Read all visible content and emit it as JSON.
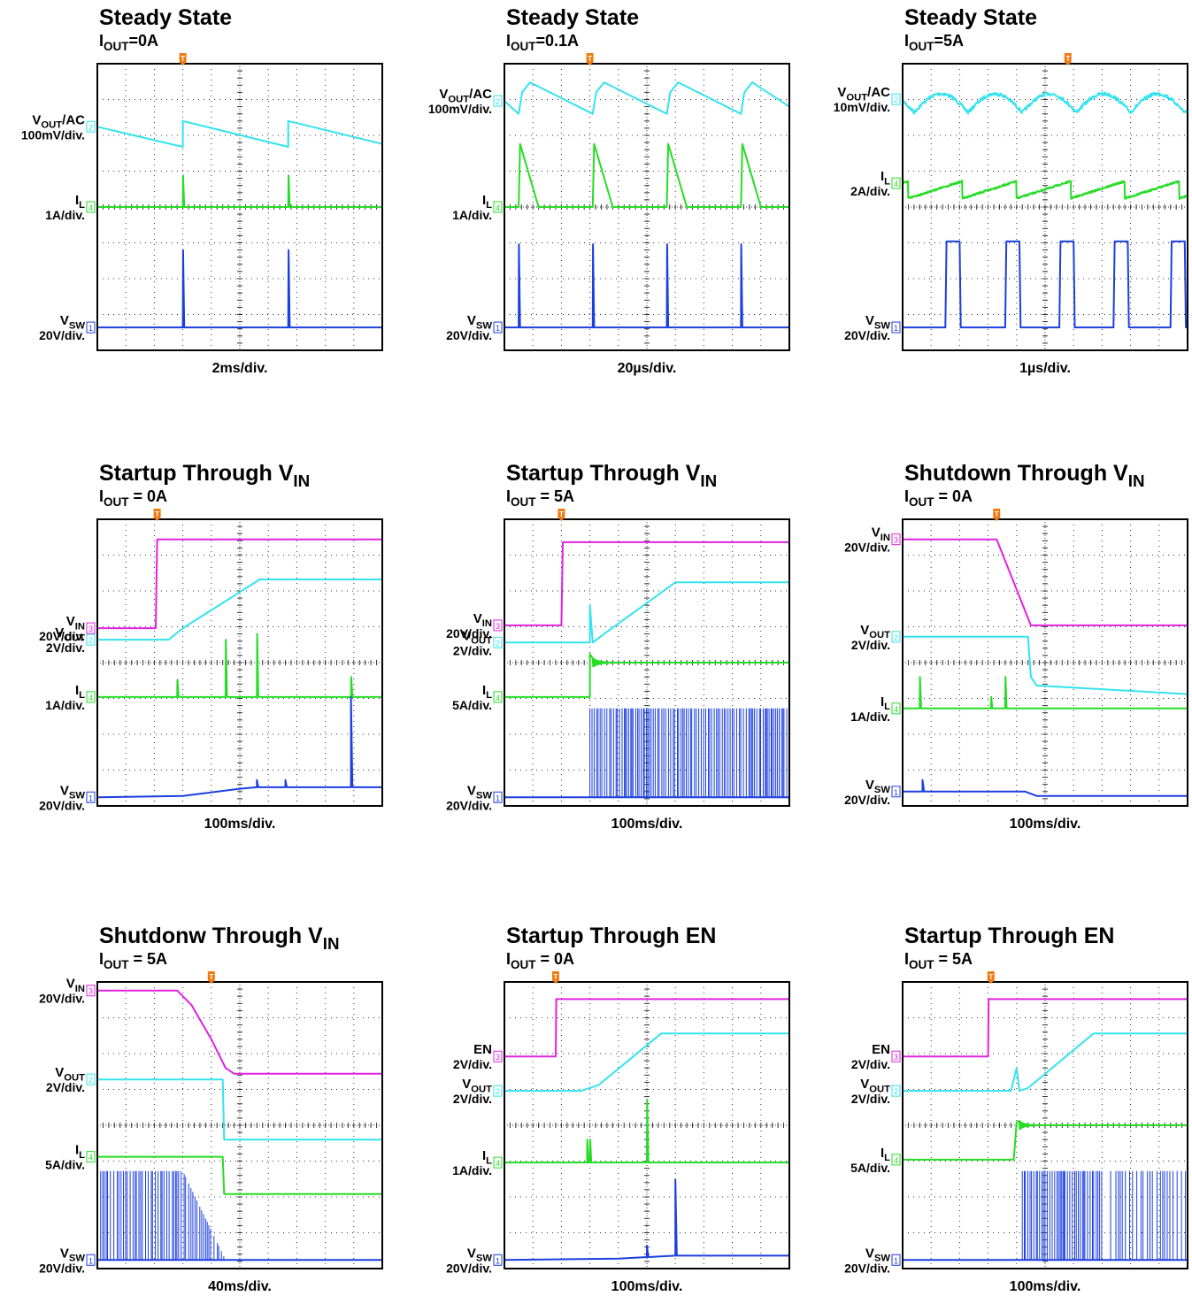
{
  "panels": [
    {
      "title": {
        "text": "Steady State"
      },
      "subtitle": {
        "symbol": "I",
        "subscript": "OUT",
        "suffix": "=0A"
      },
      "trigger": "T",
      "channels": [
        {
          "symbol": "V",
          "subscript": "OUT",
          "suffix": "/AC",
          "scale": "100mV/div.",
          "number": "2"
        },
        {
          "symbol": "I",
          "subscript": "L",
          "scale": "1A/div.",
          "number": "4"
        },
        {
          "symbol": "V",
          "subscript": "SW",
          "scale": "20V/div.",
          "number": "1"
        }
      ],
      "timebase": "2ms/div."
    },
    {
      "title": {
        "text": "Steady State"
      },
      "subtitle": {
        "symbol": "I",
        "subscript": "OUT",
        "suffix": "=0.1A"
      },
      "trigger": "T",
      "channels": [
        {
          "symbol": "V",
          "subscript": "OUT",
          "suffix": "/AC",
          "scale": "100mV/div.",
          "number": "2"
        },
        {
          "symbol": "I",
          "subscript": "L",
          "scale": "1A/div.",
          "number": "4"
        },
        {
          "symbol": "V",
          "subscript": "SW",
          "scale": "20V/div.",
          "number": "1"
        }
      ],
      "timebase": "20µs/div."
    },
    {
      "title": {
        "text": "Steady State"
      },
      "subtitle": {
        "symbol": "I",
        "subscript": "OUT",
        "suffix": "=5A"
      },
      "trigger": "T",
      "channels": [
        {
          "symbol": "V",
          "subscript": "OUT",
          "suffix": "/AC",
          "scale": "10mV/div.",
          "number": "2"
        },
        {
          "symbol": "I",
          "subscript": "L",
          "scale": "2A/div.",
          "number": "4"
        },
        {
          "symbol": "V",
          "subscript": "SW",
          "scale": "20V/div.",
          "number": "1"
        }
      ],
      "timebase": "1µs/div."
    },
    {
      "title": {
        "text": "Startup Through V",
        "subscript": "IN"
      },
      "subtitle": {
        "symbol": "I",
        "subscript": "OUT",
        "suffix": " = 0A"
      },
      "trigger": "T",
      "channels": [
        {
          "symbol": "V",
          "subscript": "IN",
          "scale": "20V/div.",
          "number": "3"
        },
        {
          "symbol": "V",
          "subscript": "OUT",
          "scale": "2V/div.",
          "number": "2"
        },
        {
          "symbol": "I",
          "subscript": "L",
          "scale": "1A/div.",
          "number": "4"
        },
        {
          "symbol": "V",
          "subscript": "SW",
          "scale": "20V/div.",
          "number": "1"
        }
      ],
      "timebase": "100ms/div."
    },
    {
      "title": {
        "text": "Startup Through V",
        "subscript": "IN"
      },
      "subtitle": {
        "symbol": "I",
        "subscript": "OUT",
        "suffix": " = 5A"
      },
      "trigger": "T",
      "channels": [
        {
          "symbol": "V",
          "subscript": "IN",
          "scale": "20V/div.",
          "number": "3"
        },
        {
          "symbol": "V",
          "subscript": "OUT",
          "scale": "2V/div.",
          "number": "2"
        },
        {
          "symbol": "I",
          "subscript": "L",
          "scale": "5A/div.",
          "number": "4"
        },
        {
          "symbol": "V",
          "subscript": "SW",
          "scale": "20V/div.",
          "number": "1"
        }
      ],
      "timebase": "100ms/div."
    },
    {
      "title": {
        "text": "Shutdown Through V",
        "subscript": "IN"
      },
      "subtitle": {
        "symbol": "I",
        "subscript": "OUT",
        "suffix": " = 0A"
      },
      "trigger": "T",
      "channels": [
        {
          "symbol": "V",
          "subscript": "IN",
          "scale": "20V/div.",
          "number": "3"
        },
        {
          "symbol": "V",
          "subscript": "OUT",
          "scale": "2V/div.",
          "number": "2"
        },
        {
          "symbol": "I",
          "subscript": "L",
          "scale": "1A/div.",
          "number": "4"
        },
        {
          "symbol": "V",
          "subscript": "SW",
          "scale": "20V/div.",
          "number": "1"
        }
      ],
      "timebase": "100ms/div."
    },
    {
      "title": {
        "text": "Shutdonw Through V",
        "subscript": "IN"
      },
      "subtitle": {
        "symbol": "I",
        "subscript": "OUT",
        "suffix": " = 5A"
      },
      "trigger": "T",
      "channels": [
        {
          "symbol": "V",
          "subscript": "IN",
          "scale": "20V/div.",
          "number": "3"
        },
        {
          "symbol": "V",
          "subscript": "OUT",
          "scale": "2V/div.",
          "number": "2"
        },
        {
          "symbol": "I",
          "subscript": "L",
          "scale": "5A/div.",
          "number": "4"
        },
        {
          "symbol": "V",
          "subscript": "SW",
          "scale": "20V/div.",
          "number": "1"
        }
      ],
      "timebase": "40ms/div."
    },
    {
      "title": {
        "text": "Startup Through EN"
      },
      "subtitle": {
        "symbol": "I",
        "subscript": "OUT",
        "suffix": " = 0A"
      },
      "trigger": "T",
      "channels": [
        {
          "symbol": "EN",
          "scale": "2V/div.",
          "number": "3"
        },
        {
          "symbol": "V",
          "subscript": "OUT",
          "scale": "2V/div.",
          "number": "2"
        },
        {
          "symbol": "I",
          "subscript": "L",
          "scale": "1A/div.",
          "number": "4"
        },
        {
          "symbol": "V",
          "subscript": "SW",
          "scale": "20V/div.",
          "number": "1"
        }
      ],
      "timebase": "100ms/div."
    },
    {
      "title": {
        "text": "Startup Through EN"
      },
      "subtitle": {
        "symbol": "I",
        "subscript": "OUT",
        "suffix": " = 5A"
      },
      "trigger": "T",
      "channels": [
        {
          "symbol": "EN",
          "scale": "2V/div.",
          "number": "3"
        },
        {
          "symbol": "V",
          "subscript": "OUT",
          "scale": "2V/div.",
          "number": "2"
        },
        {
          "symbol": "I",
          "subscript": "L",
          "scale": "5A/div.",
          "number": "4"
        },
        {
          "symbol": "V",
          "subscript": "SW",
          "scale": "20V/div.",
          "number": "1"
        }
      ],
      "timebase": "100ms/div."
    }
  ]
}
